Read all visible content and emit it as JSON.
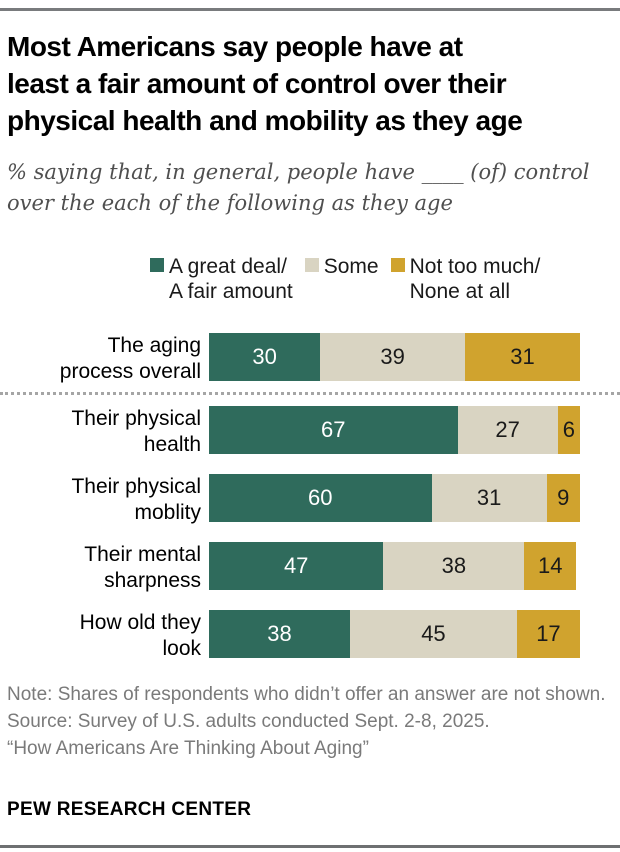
{
  "page": {
    "title_lines": [
      "Most Americans say people have at",
      "least a fair amount of control over their",
      "physical health and mobility as they age"
    ],
    "subtitle_lines": [
      "% saying that, in general, people have ____ (of) control",
      "over the each of the following as they age"
    ]
  },
  "legend": {
    "items": [
      {
        "label_lines": [
          "A great deal/",
          "A fair amount"
        ],
        "color": "#2f6b5c"
      },
      {
        "label_lines": [
          "Some"
        ],
        "color": "#d9d4c2"
      },
      {
        "label_lines": [
          "Not too much/",
          "None at all"
        ],
        "color": "#d0a32e"
      }
    ]
  },
  "chart_data": {
    "type": "bar",
    "orientation": "horizontal-stacked",
    "title": "Most Americans say people have at least a fair amount of control over their physical health and mobility as they age",
    "xlabel": "",
    "ylabel": "",
    "xlim": [
      0,
      100
    ],
    "grid": false,
    "legend_position": "top",
    "categories": [
      "The aging process overall",
      "Their physical health",
      "Their physical moblity",
      "Their mental sharpness",
      "How old they look"
    ],
    "category_label_lines": [
      [
        "The aging",
        "process overall"
      ],
      [
        "Their physical",
        "health"
      ],
      [
        "Their physical",
        "moblity"
      ],
      [
        "Their mental",
        "sharpness"
      ],
      [
        "How old they",
        "look"
      ]
    ],
    "series": [
      {
        "name": "A great deal/A fair amount",
        "color": "#2f6b5c",
        "text_color": "#ffffff",
        "values": [
          30,
          67,
          60,
          47,
          38
        ]
      },
      {
        "name": "Some",
        "color": "#d9d4c2",
        "text_color": "#1a1a1a",
        "values": [
          39,
          27,
          31,
          38,
          45
        ]
      },
      {
        "name": "Not too much/None at all",
        "color": "#d0a32e",
        "text_color": "#1a1a1a",
        "values": [
          31,
          6,
          9,
          14,
          17
        ]
      }
    ],
    "divider_after_category_index": 0
  },
  "footer": {
    "note": "Note: Shares of respondents who didn’t offer an answer are not shown.",
    "source": "Source: Survey of U.S. adults conducted Sept. 2-8, 2025.",
    "quote": "“How Americans Are Thinking About Aging”",
    "wordmark": "PEW RESEARCH CENTER"
  },
  "colors": {
    "teal": "#2f6b5c",
    "beige": "#d9d4c2",
    "gold": "#d0a32e",
    "note_gray": "#7a7a7a",
    "rule_gray": "#797b7d",
    "dotted_divider": "#a5a5a5"
  }
}
